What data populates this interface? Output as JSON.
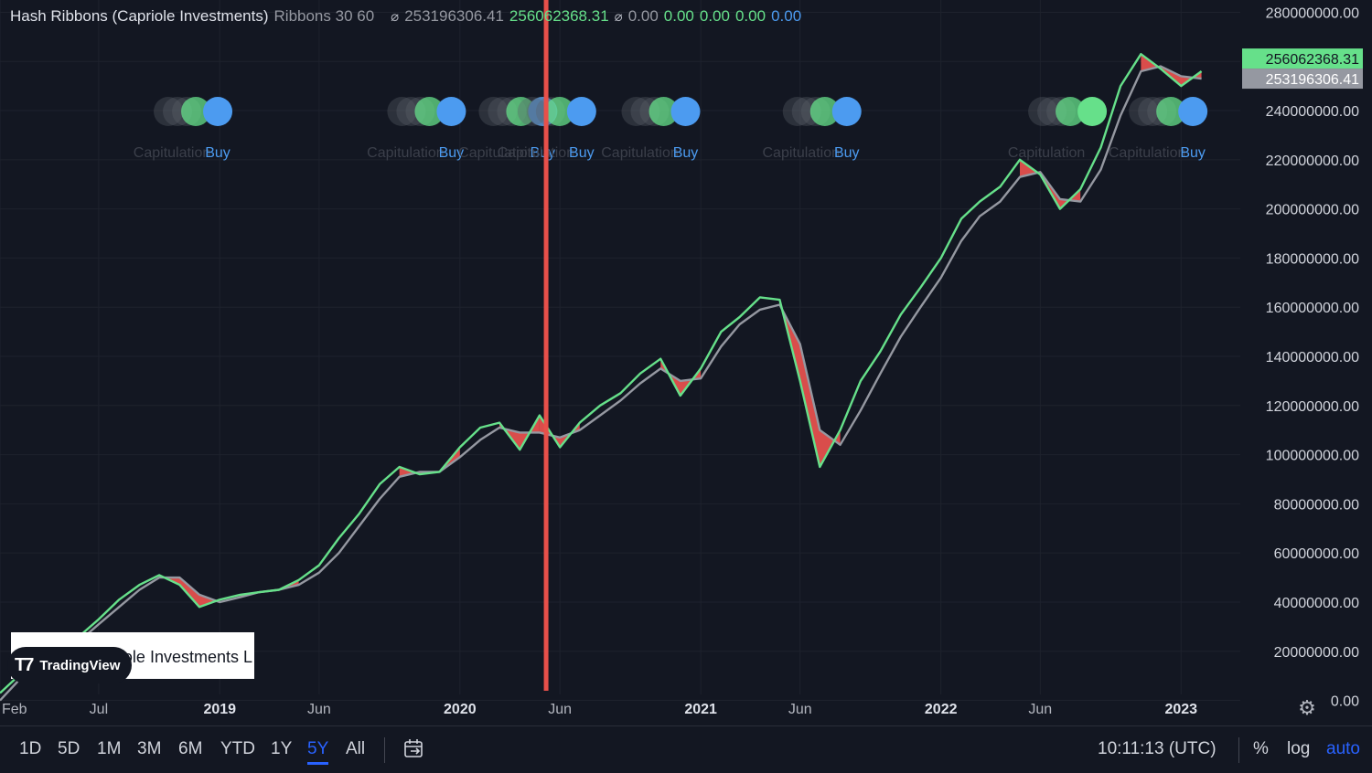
{
  "indicator": {
    "title": "Hash Ribbons (Capriole Investments)",
    "params": "Ribbons 30 60",
    "value_1": "253196306.41",
    "value_2": "256062368.31",
    "value_3": "0.00",
    "value_4": "0.00",
    "value_5": "0.00",
    "value_6": "0.00",
    "value_7": "0.00"
  },
  "colors": {
    "background": "#131722",
    "fast_ma": "#66e08a",
    "slow_ma": "#9598a1",
    "capitulation_fill": "#f05350",
    "buy_dot": "#4c9bf0",
    "capitulation_dot": "#66e08a",
    "marker_line": "#e8504a",
    "accent": "#2962ff"
  },
  "price_labels": {
    "fast": "256062368.31",
    "slow": "253196306.41"
  },
  "chart_data": {
    "type": "line",
    "xlabel": "",
    "ylabel": "",
    "ylim": [
      -5000000,
      285000000
    ],
    "log_scale": false,
    "grid": true,
    "y_ticks": [
      "280000000.00",
      "260000000.00",
      "240000000.00",
      "220000000.00",
      "200000000.00",
      "180000000.00",
      "160000000.00",
      "140000000.00",
      "120000000.00",
      "100000000.00",
      "80000000.00",
      "60000000.00",
      "40000000.00",
      "20000000.00",
      "0.00"
    ],
    "y_tick_values": [
      280000000,
      260000000,
      240000000,
      220000000,
      200000000,
      180000000,
      160000000,
      140000000,
      120000000,
      100000000,
      80000000,
      60000000,
      40000000,
      20000000,
      0
    ],
    "x_ticks": [
      {
        "label": "Feb",
        "date": "2018-02-01",
        "bold": false
      },
      {
        "label": "Jul",
        "date": "2018-07-01",
        "bold": false
      },
      {
        "label": "2019",
        "date": "2019-01-01",
        "bold": true
      },
      {
        "label": "Jun",
        "date": "2019-06-01",
        "bold": false
      },
      {
        "label": "2020",
        "date": "2020-01-01",
        "bold": true
      },
      {
        "label": "Jun",
        "date": "2020-06-01",
        "bold": false
      },
      {
        "label": "2021",
        "date": "2021-01-01",
        "bold": true
      },
      {
        "label": "Jun",
        "date": "2021-06-01",
        "bold": false
      },
      {
        "label": "2022",
        "date": "2022-01-01",
        "bold": true
      },
      {
        "label": "Jun",
        "date": "2022-06-01",
        "bold": false
      },
      {
        "label": "2023",
        "date": "2023-01-01",
        "bold": true
      }
    ],
    "x_range": [
      "2018-02-01",
      "2023-04-01"
    ],
    "marker_date": "2020-05-11",
    "series": [
      {
        "name": "",
        "role": "fast",
        "points": [
          [
            "2018-02-01",
            3000000
          ],
          [
            "2018-03-01",
            10000000
          ],
          [
            "2018-04-01",
            16000000
          ],
          [
            "2018-05-01",
            21000000
          ],
          [
            "2018-06-01",
            26000000
          ],
          [
            "2018-07-01",
            33000000
          ],
          [
            "2018-08-01",
            41000000
          ],
          [
            "2018-09-01",
            47000000
          ],
          [
            "2018-10-01",
            51000000
          ],
          [
            "2018-11-01",
            47000000
          ],
          [
            "2018-12-01",
            38000000
          ],
          [
            "2019-01-01",
            41000000
          ],
          [
            "2019-02-01",
            43000000
          ],
          [
            "2019-03-01",
            44000000
          ],
          [
            "2019-04-01",
            45000000
          ],
          [
            "2019-05-01",
            49000000
          ],
          [
            "2019-06-01",
            55000000
          ],
          [
            "2019-07-01",
            66000000
          ],
          [
            "2019-08-01",
            76000000
          ],
          [
            "2019-09-01",
            88000000
          ],
          [
            "2019-10-01",
            95000000
          ],
          [
            "2019-11-01",
            92000000
          ],
          [
            "2019-12-01",
            93000000
          ],
          [
            "2020-01-01",
            103000000
          ],
          [
            "2020-02-01",
            111000000
          ],
          [
            "2020-03-01",
            113000000
          ],
          [
            "2020-04-01",
            102000000
          ],
          [
            "2020-05-01",
            116000000
          ],
          [
            "2020-06-01",
            103000000
          ],
          [
            "2020-07-01",
            113000000
          ],
          [
            "2020-08-01",
            120000000
          ],
          [
            "2020-09-01",
            125000000
          ],
          [
            "2020-10-01",
            133000000
          ],
          [
            "2020-11-01",
            139000000
          ],
          [
            "2020-12-01",
            124000000
          ],
          [
            "2021-01-01",
            135000000
          ],
          [
            "2021-02-01",
            150000000
          ],
          [
            "2021-03-01",
            156000000
          ],
          [
            "2021-04-01",
            164000000
          ],
          [
            "2021-05-01",
            163000000
          ],
          [
            "2021-06-01",
            130000000
          ],
          [
            "2021-07-01",
            95000000
          ],
          [
            "2021-08-01",
            110000000
          ],
          [
            "2021-09-01",
            130000000
          ],
          [
            "2021-10-01",
            142000000
          ],
          [
            "2021-11-01",
            157000000
          ],
          [
            "2021-12-01",
            168000000
          ],
          [
            "2022-01-01",
            180000000
          ],
          [
            "2022-02-01",
            196000000
          ],
          [
            "2022-03-01",
            203000000
          ],
          [
            "2022-04-01",
            209000000
          ],
          [
            "2022-05-01",
            220000000
          ],
          [
            "2022-06-01",
            214000000
          ],
          [
            "2022-07-01",
            200000000
          ],
          [
            "2022-08-01",
            208000000
          ],
          [
            "2022-09-01",
            225000000
          ],
          [
            "2022-10-01",
            250000000
          ],
          [
            "2022-11-01",
            263000000
          ],
          [
            "2022-12-01",
            257000000
          ],
          [
            "2023-01-01",
            250000000
          ],
          [
            "2023-02-01",
            256000000
          ]
        ]
      },
      {
        "name": "",
        "role": "slow",
        "points": [
          [
            "2018-02-01",
            0
          ],
          [
            "2018-03-01",
            8000000
          ],
          [
            "2018-04-01",
            14000000
          ],
          [
            "2018-05-01",
            19000000
          ],
          [
            "2018-06-01",
            24000000
          ],
          [
            "2018-07-01",
            31000000
          ],
          [
            "2018-08-01",
            38000000
          ],
          [
            "2018-09-01",
            45000000
          ],
          [
            "2018-10-01",
            50000000
          ],
          [
            "2018-11-01",
            50000000
          ],
          [
            "2018-12-01",
            43000000
          ],
          [
            "2019-01-01",
            40000000
          ],
          [
            "2019-02-01",
            42000000
          ],
          [
            "2019-03-01",
            44000000
          ],
          [
            "2019-04-01",
            45000000
          ],
          [
            "2019-05-01",
            47000000
          ],
          [
            "2019-06-01",
            52000000
          ],
          [
            "2019-07-01",
            60000000
          ],
          [
            "2019-08-01",
            71000000
          ],
          [
            "2019-09-01",
            82000000
          ],
          [
            "2019-10-01",
            91000000
          ],
          [
            "2019-11-01",
            93000000
          ],
          [
            "2019-12-01",
            93000000
          ],
          [
            "2020-01-01",
            99000000
          ],
          [
            "2020-02-01",
            106000000
          ],
          [
            "2020-03-01",
            111000000
          ],
          [
            "2020-04-01",
            109000000
          ],
          [
            "2020-05-01",
            109000000
          ],
          [
            "2020-06-01",
            107000000
          ],
          [
            "2020-07-01",
            110000000
          ],
          [
            "2020-08-01",
            116000000
          ],
          [
            "2020-09-01",
            122000000
          ],
          [
            "2020-10-01",
            129000000
          ],
          [
            "2020-11-01",
            135000000
          ],
          [
            "2020-12-01",
            130000000
          ],
          [
            "2021-01-01",
            131000000
          ],
          [
            "2021-02-01",
            144000000
          ],
          [
            "2021-03-01",
            153000000
          ],
          [
            "2021-04-01",
            159000000
          ],
          [
            "2021-05-01",
            161000000
          ],
          [
            "2021-06-01",
            145000000
          ],
          [
            "2021-07-01",
            110000000
          ],
          [
            "2021-08-01",
            104000000
          ],
          [
            "2021-09-01",
            118000000
          ],
          [
            "2021-10-01",
            133000000
          ],
          [
            "2021-11-01",
            148000000
          ],
          [
            "2021-12-01",
            160000000
          ],
          [
            "2022-01-01",
            172000000
          ],
          [
            "2022-02-01",
            187000000
          ],
          [
            "2022-03-01",
            197000000
          ],
          [
            "2022-04-01",
            203000000
          ],
          [
            "2022-05-01",
            213000000
          ],
          [
            "2022-06-01",
            215000000
          ],
          [
            "2022-07-01",
            204000000
          ],
          [
            "2022-08-01",
            203000000
          ],
          [
            "2022-09-01",
            216000000
          ],
          [
            "2022-10-01",
            238000000
          ],
          [
            "2022-11-01",
            256000000
          ],
          [
            "2022-12-01",
            258000000
          ],
          [
            "2023-01-01",
            254000000
          ],
          [
            "2023-02-01",
            253000000
          ]
        ]
      }
    ],
    "signals": [
      {
        "date": "2018-12-15",
        "capitulation_label": "Capitulation",
        "buy_label": "Buy"
      },
      {
        "date": "2019-12-05",
        "capitulation_label": "Capitulation",
        "buy_label": "Buy"
      },
      {
        "date": "2020-04-22",
        "capitulation_label": "Capitulation",
        "buy_label": "Buy"
      },
      {
        "date": "2020-06-20",
        "capitulation_label": "Capitulation",
        "buy_label": "Buy"
      },
      {
        "date": "2020-11-25",
        "capitulation_label": "Capitulation",
        "buy_label": "Buy"
      },
      {
        "date": "2021-07-28",
        "capitulation_label": "Capitulation",
        "buy_label": "Buy"
      },
      {
        "date": "2022-08-05",
        "capitulation_label": "Capitulation",
        "buy_label": ""
      },
      {
        "date": "2023-01-05",
        "capitulation_label": "Capitulation",
        "buy_label": "Buy"
      }
    ]
  },
  "watermark": {
    "text": "Capriole Investments L",
    "brand": "TradingView"
  },
  "toolbar": {
    "ranges": [
      "1D",
      "5D",
      "1M",
      "3M",
      "6M",
      "YTD",
      "1Y",
      "5Y",
      "All"
    ],
    "active_range": "5Y",
    "goto_icon": "calendar-goto-icon",
    "clock": "10:11:13 (UTC)",
    "percent_label": "%",
    "log_label": "log",
    "auto_label": "auto"
  },
  "icons": {
    "settings": "gear-icon",
    "eye": "eye-off-icon"
  }
}
